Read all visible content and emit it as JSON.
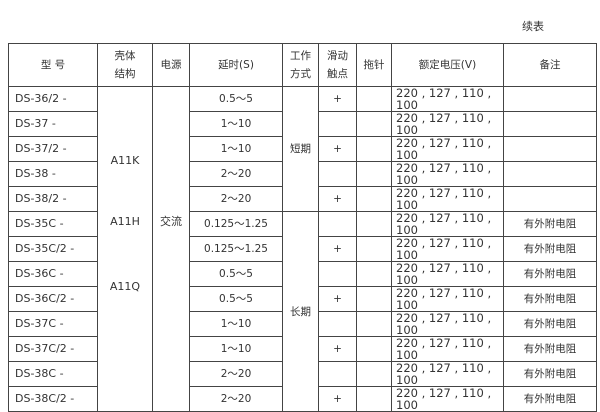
{
  "continued": "续表",
  "headers": {
    "model": "型  号",
    "shell": "壳体\n结构",
    "power": "电源",
    "delay": "延时(S)",
    "mode": "工作\n方式",
    "slide": "滑动\n触点",
    "pointer": "拖针",
    "voltage": "额定电压(V)",
    "remark": "备注"
  },
  "shell_groups": [
    "A11K",
    "A11H",
    "A11Q"
  ],
  "power": "交流",
  "modes": [
    "短期",
    "长期"
  ],
  "rows": [
    {
      "model": "DS-36/2 -",
      "delay": "0.5～5",
      "slide": "+",
      "voltage": "220 , 127 , 110 , 100",
      "remark": ""
    },
    {
      "model": "DS-37  -",
      "delay": "1～10",
      "slide": "",
      "voltage": "220 , 127 , 110 , 100",
      "remark": ""
    },
    {
      "model": "DS-37/2 -",
      "delay": "1～10",
      "slide": "+",
      "voltage": "220 , 127 , 110 , 100",
      "remark": ""
    },
    {
      "model": "DS-38  -",
      "delay": "2～20",
      "slide": "",
      "voltage": "220 , 127 , 110 , 100",
      "remark": ""
    },
    {
      "model": "DS-38/2 -",
      "delay": "2～20",
      "slide": "+",
      "voltage": "220 , 127 , 110 , 100",
      "remark": ""
    },
    {
      "model": "DS-35C  -",
      "delay": "0.125～1.25",
      "slide": "",
      "voltage": "220 , 127 , 110 , 100",
      "remark": "有外附电阻"
    },
    {
      "model": "DS-35C/2 -",
      "delay": "0.125～1.25",
      "slide": "+",
      "voltage": "220 , 127 , 110 , 100",
      "remark": "有外附电阻"
    },
    {
      "model": "DS-36C  -",
      "delay": "0.5～5",
      "slide": "",
      "voltage": "220 , 127 , 110 , 100",
      "remark": "有外附电阻"
    },
    {
      "model": "DS-36C/2 -",
      "delay": "0.5～5",
      "slide": "+",
      "voltage": "220 , 127 , 110 , 100",
      "remark": "有外附电阻"
    },
    {
      "model": "DS-37C  -",
      "delay": "1～10",
      "slide": "",
      "voltage": "220 , 127 , 110 , 100",
      "remark": "有外附电阻"
    },
    {
      "model": "DS-37C/2 -",
      "delay": "1～10",
      "slide": "+",
      "voltage": "220 , 127 , 110 , 100",
      "remark": "有外附电阻"
    },
    {
      "model": "DS-38C  -",
      "delay": "2～20",
      "slide": "",
      "voltage": "220 , 127 , 110 , 100",
      "remark": "有外附电阻"
    },
    {
      "model": "DS-38C/2  -",
      "delay": "2～20",
      "slide": "+",
      "voltage": "220 , 127 , 110 , 100",
      "remark": "有外附电阻"
    }
  ]
}
